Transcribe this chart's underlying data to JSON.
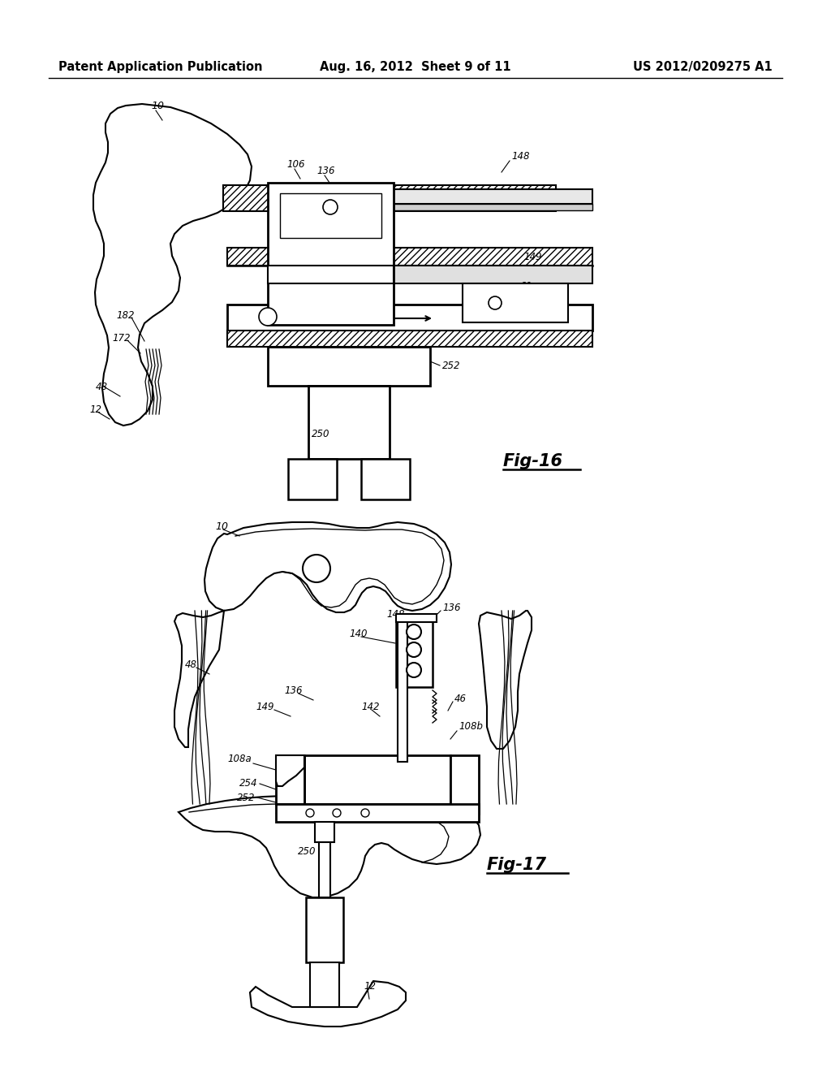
{
  "background_color": "#ffffff",
  "header_left": "Patent Application Publication",
  "header_center": "Aug. 16, 2012  Sheet 9 of 11",
  "header_right": "US 2012/0209275 A1",
  "header_fontsize": 10.5,
  "fig16_label": "Fig-16",
  "fig17_label": "Fig-17",
  "label_fontsize": 15
}
